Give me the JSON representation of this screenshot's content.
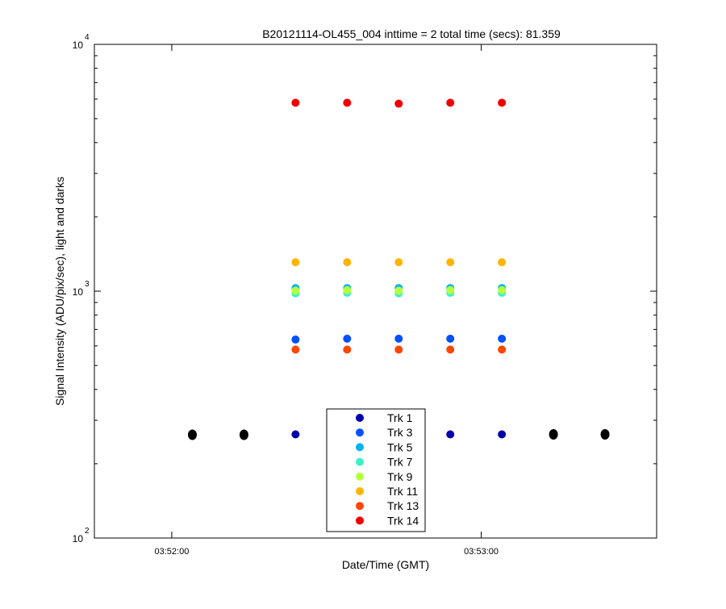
{
  "chart_data": {
    "type": "scatter",
    "title": "B20121114-OL455_004 inttime = 2 total time (secs): 81.359",
    "xlabel": "Date/Time (GMT)",
    "ylabel": "Signal Intensity (ADU/pix/sec), light and darks",
    "x_unit": "time (hh:mm:ss, GMT)",
    "y_scale": "log",
    "xlim": [
      "03:51:45",
      "03:53:34"
    ],
    "ylim": [
      100,
      10000
    ],
    "x_ticks": [
      "03:52:00",
      "03:53:00"
    ],
    "y_ticks": [
      {
        "base": "10",
        "exp": "2",
        "value": 100
      },
      {
        "base": "10",
        "exp": "3",
        "value": 1000
      },
      {
        "base": "10",
        "exp": "4",
        "value": 10000
      }
    ],
    "grid": false,
    "legend_position": "bottom-center",
    "series": [
      {
        "name": "Trk 1",
        "color": "#0000aa",
        "x": [
          "03:52:24",
          "03:52:34",
          "03:52:44",
          "03:52:54",
          "03:53:04"
        ],
        "y": [
          263,
          263,
          263,
          263,
          263
        ]
      },
      {
        "name": "Trk 3",
        "color": "#0050ff",
        "x": [
          "03:52:24",
          "03:52:34",
          "03:52:44",
          "03:52:54",
          "03:53:04"
        ],
        "y": [
          637,
          642,
          642,
          642,
          642
        ]
      },
      {
        "name": "Trk 5",
        "color": "#00b4ee",
        "x": [
          "03:52:24",
          "03:52:34",
          "03:52:44",
          "03:52:54",
          "03:53:04"
        ],
        "y": [
          1030,
          1030,
          1030,
          1030,
          1030
        ]
      },
      {
        "name": "Trk 7",
        "color": "#3cf0c8",
        "x": [
          "03:52:24",
          "03:52:34",
          "03:52:44",
          "03:52:54",
          "03:53:04"
        ],
        "y": [
          980,
          985,
          980,
          985,
          985
        ]
      },
      {
        "name": "Trk 9",
        "color": "#b4ff3c",
        "x": [
          "03:52:24",
          "03:52:34",
          "03:52:44",
          "03:52:54",
          "03:53:04"
        ],
        "y": [
          1005,
          1010,
          1005,
          1010,
          1010
        ]
      },
      {
        "name": "Trk 11",
        "color": "#ffb400",
        "x": [
          "03:52:24",
          "03:52:34",
          "03:52:44",
          "03:52:54",
          "03:53:04"
        ],
        "y": [
          1310,
          1310,
          1310,
          1310,
          1310
        ]
      },
      {
        "name": "Trk 13",
        "color": "#ff4600",
        "x": [
          "03:52:24",
          "03:52:34",
          "03:52:44",
          "03:52:54",
          "03:53:04"
        ],
        "y": [
          580,
          580,
          580,
          580,
          580
        ]
      },
      {
        "name": "Trk 14",
        "color": "#ee0000",
        "x": [
          "03:52:24",
          "03:52:34",
          "03:52:44",
          "03:52:54",
          "03:53:04"
        ],
        "y": [
          5800,
          5800,
          5750,
          5800,
          5800
        ]
      }
    ],
    "dark_points": {
      "color": "#000000",
      "x": [
        "03:52:04",
        "03:52:14",
        "03:53:14",
        "03:53:24"
      ],
      "y": [
        262,
        262,
        263,
        263
      ]
    }
  }
}
